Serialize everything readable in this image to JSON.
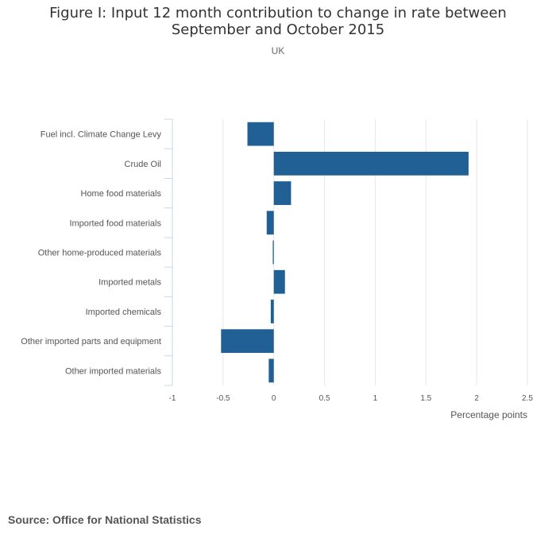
{
  "header": {
    "title": "Figure I: Input 12 month contribution to change in rate between September and October 2015",
    "subtitle": "UK"
  },
  "footer": {
    "source": "Source: Office for National Statistics"
  },
  "colors": {
    "bar": "#206095",
    "grid": "#e6e6e6",
    "axis": "#ccd6eb"
  },
  "chart_data": {
    "type": "bar",
    "orientation": "horizontal",
    "categories": [
      "Fuel incl. Climate Change Levy",
      "Crude Oil",
      "Home food materials",
      "Imported food materials",
      "Other home-produced materials",
      "Imported metals",
      "Imported chemicals",
      "Other imported parts and equipment",
      "Other imported materials"
    ],
    "values": [
      -0.26,
      1.92,
      0.17,
      -0.07,
      -0.01,
      0.11,
      -0.03,
      -0.52,
      -0.05
    ],
    "xlim": [
      -1,
      2.5
    ],
    "xticks": [
      "-1",
      "-0.5",
      "0",
      "0.5",
      "1",
      "1.5",
      "2",
      "2.5"
    ],
    "xlabel": "Percentage points",
    "ylabel": "",
    "grid": true,
    "legend": "none"
  }
}
